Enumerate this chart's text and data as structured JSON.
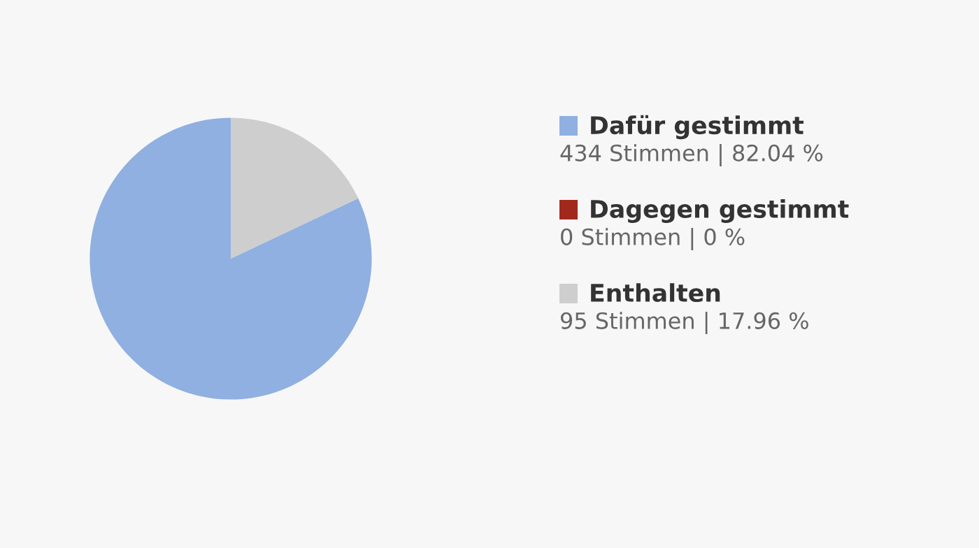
{
  "chart_data": {
    "type": "pie",
    "categories": [
      "Dafür gestimmt",
      "Dagegen gestimmt",
      "Enthalten"
    ],
    "values": [
      434,
      0,
      95
    ],
    "colors": [
      "#8fb0e0",
      "#a1281c",
      "#cecece"
    ],
    "value_labels": [
      "434 Stimmen | 82.04 %",
      "0 Stimmen | 0 %",
      "95 Stimmen | 17.96 %"
    ],
    "legend": "right"
  }
}
